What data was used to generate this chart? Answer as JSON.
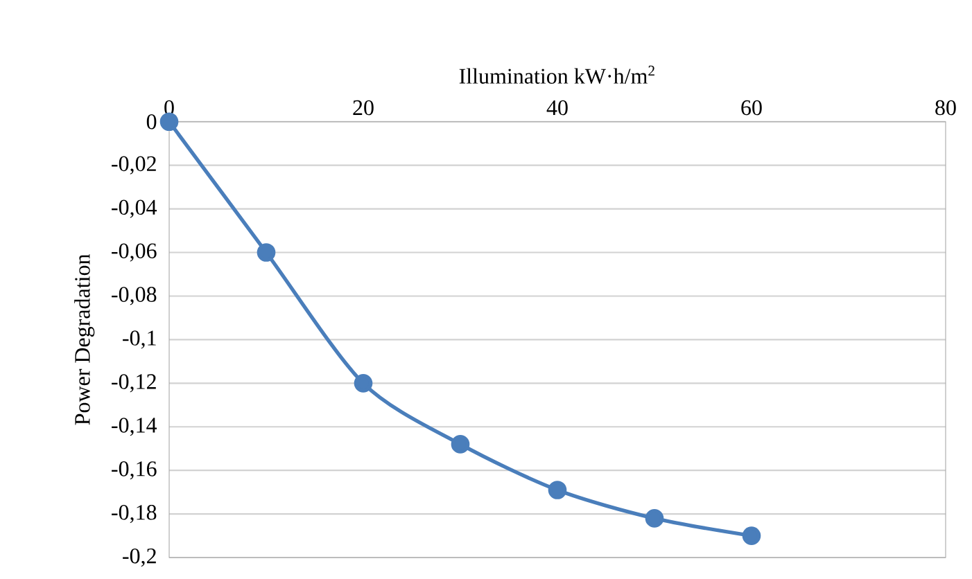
{
  "chart_data": {
    "type": "line",
    "xlabel": "Illumination kW·h/m$^{2}$",
    "ylabel": "Power  Degradation",
    "x": [
      0,
      10,
      20,
      30,
      40,
      50,
      60
    ],
    "series": [
      {
        "color": "#4a7ebb",
        "values": [
          0,
          -0.06,
          -0.12,
          -0.148,
          -0.169,
          -0.182,
          -0.19
        ]
      }
    ],
    "xlim": [
      0,
      80
    ],
    "xticks": [
      0,
      20,
      40,
      60,
      80
    ],
    "ylim": [
      -0.2,
      0
    ],
    "yticks": [
      {
        "value": 0,
        "label": "0"
      },
      {
        "value": -0.02,
        "label": "-0,02"
      },
      {
        "value": -0.04,
        "label": "-0,04"
      },
      {
        "value": -0.06,
        "label": "-0,06"
      },
      {
        "value": -0.08,
        "label": "-0,08"
      },
      {
        "value": -0.1,
        "label": "-0,1"
      },
      {
        "value": -0.12,
        "label": "-0,12"
      },
      {
        "value": -0.14,
        "label": "-0,14"
      },
      {
        "value": -0.16,
        "label": "-0,16"
      },
      {
        "value": -0.18,
        "label": "-0,18"
      },
      {
        "value": -0.2,
        "label": "-0,2"
      }
    ],
    "grid": "y",
    "marker": "circle",
    "line_style": "solid"
  }
}
